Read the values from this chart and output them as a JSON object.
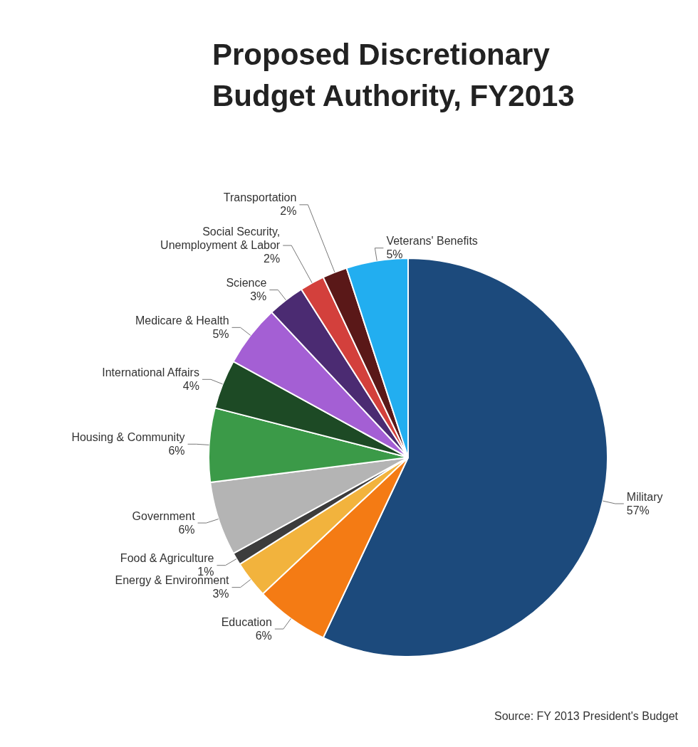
{
  "chart_data": {
    "type": "pie",
    "title": "Proposed Discretionary Budget Authority, FY2013",
    "categories": [
      "Military",
      "Education",
      "Energy & Environment",
      "Food & Agriculture",
      "Government",
      "Housing & Community",
      "International Affairs",
      "Medicare & Health",
      "Science",
      "Social Security, Unemployment & Labor",
      "Transportation",
      "Veterans' Benefits"
    ],
    "values": [
      57,
      6,
      3,
      1,
      6,
      6,
      4,
      5,
      3,
      2,
      2,
      5
    ],
    "value_labels": [
      "57%",
      "6%",
      "3%",
      "1%",
      "6%",
      "6%",
      "4%",
      "5%",
      "3%",
      "2%",
      "2%",
      "5%"
    ],
    "colors": [
      "#1c4a7c",
      "#f47b14",
      "#f2b33d",
      "#3c3c3c",
      "#b4b4b4",
      "#3b9a48",
      "#1d4a25",
      "#a45fd4",
      "#4b2b72",
      "#d3403c",
      "#5a1818",
      "#22aef0"
    ],
    "annotations": [
      "Source: FY 2013 President's Budget"
    ],
    "legend": false
  }
}
